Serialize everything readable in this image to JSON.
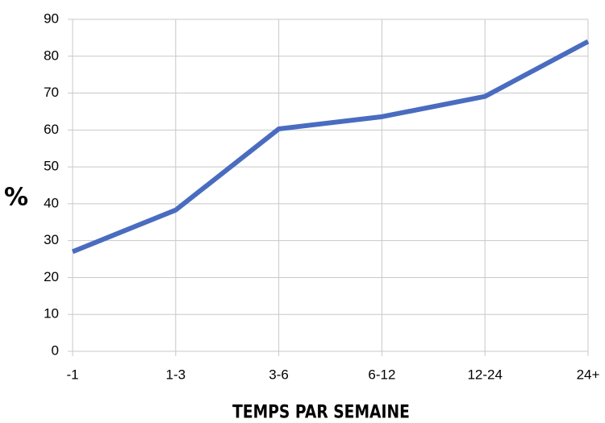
{
  "chart_data": {
    "type": "line",
    "x_label": "TEMPS PAR SEMAINE",
    "y_label": "%",
    "categories": [
      "-1",
      "1-3",
      "3-6",
      "6-12",
      "12-24",
      "24+"
    ],
    "series": [
      {
        "name": null,
        "color": "#4a6cc0",
        "values": [
          27,
          38.3,
          60.3,
          63.6,
          69.1,
          84
        ]
      }
    ],
    "ylim": [
      0,
      90
    ],
    "yticks": [
      0,
      10,
      20,
      30,
      40,
      50,
      60,
      70,
      80,
      90
    ],
    "grid": true
  }
}
